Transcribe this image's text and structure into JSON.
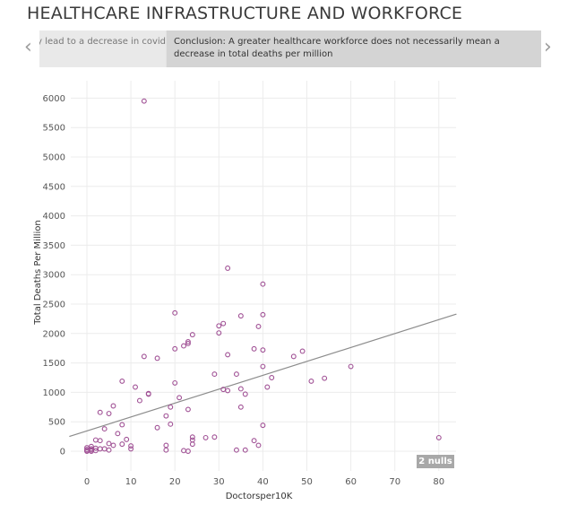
{
  "title": "HEALTHCARE INFRASTRUCTURE AND WORKFORCE",
  "story": {
    "prev_caption": "rily lead to a decrease in covid",
    "current_caption": "Conclusion: A greater healthcare workforce does not necessarily mean a decrease in total deaths per million",
    "prev_arrow": "‹",
    "next_arrow": "›"
  },
  "null_badge": "2 nulls",
  "colors": {
    "point": "#a05195",
    "trend": "#8c8c8c",
    "grid": "#ececec"
  },
  "chart_data": {
    "type": "scatter",
    "xlabel": "Doctorsper10K",
    "ylabel": "Total Deaths Per Million",
    "xlim": [
      -4,
      84
    ],
    "ylim": [
      -120,
      6150
    ],
    "xticks": [
      0,
      10,
      20,
      30,
      40,
      50,
      60,
      70,
      80
    ],
    "yticks": [
      0,
      500,
      1000,
      1500,
      2000,
      2500,
      3000,
      3500,
      4000,
      4500,
      5000,
      5500,
      6000
    ],
    "trend_line": {
      "x": [
        -4,
        84
      ],
      "y": [
        250,
        2330
      ]
    },
    "points": [
      [
        13,
        5950
      ],
      [
        32,
        3110
      ],
      [
        40,
        2840
      ],
      [
        20,
        2350
      ],
      [
        35,
        2300
      ],
      [
        40,
        2320
      ],
      [
        31,
        2170
      ],
      [
        30,
        2130
      ],
      [
        39,
        2120
      ],
      [
        30,
        2010
      ],
      [
        24,
        1980
      ],
      [
        23,
        1860
      ],
      [
        23,
        1830
      ],
      [
        22,
        1790
      ],
      [
        20,
        1740
      ],
      [
        38,
        1740
      ],
      [
        40,
        1720
      ],
      [
        49,
        1700
      ],
      [
        32,
        1640
      ],
      [
        13,
        1610
      ],
      [
        16,
        1580
      ],
      [
        47,
        1610
      ],
      [
        60,
        1440
      ],
      [
        40,
        1440
      ],
      [
        34,
        1310
      ],
      [
        29,
        1310
      ],
      [
        54,
        1240
      ],
      [
        42,
        1250
      ],
      [
        51,
        1190
      ],
      [
        8,
        1190
      ],
      [
        20,
        1160
      ],
      [
        11,
        1090
      ],
      [
        41,
        1090
      ],
      [
        35,
        1060
      ],
      [
        31,
        1050
      ],
      [
        32,
        1030
      ],
      [
        14,
        980
      ],
      [
        14,
        970
      ],
      [
        21,
        910
      ],
      [
        12,
        860
      ],
      [
        36,
        970
      ],
      [
        19,
        750
      ],
      [
        6,
        770
      ],
      [
        35,
        750
      ],
      [
        23,
        710
      ],
      [
        3,
        660
      ],
      [
        5,
        640
      ],
      [
        18,
        600
      ],
      [
        8,
        450
      ],
      [
        19,
        460
      ],
      [
        40,
        440
      ],
      [
        16,
        400
      ],
      [
        7,
        300
      ],
      [
        4,
        380
      ],
      [
        24,
        240
      ],
      [
        27,
        230
      ],
      [
        29,
        240
      ],
      [
        38,
        180
      ],
      [
        80,
        230
      ],
      [
        24,
        190
      ],
      [
        2,
        190
      ],
      [
        3,
        180
      ],
      [
        9,
        200
      ],
      [
        10,
        90
      ],
      [
        39,
        100
      ],
      [
        24,
        120
      ],
      [
        18,
        100
      ],
      [
        8,
        120
      ],
      [
        5,
        130
      ],
      [
        6,
        100
      ],
      [
        1,
        80
      ],
      [
        0,
        60
      ],
      [
        2,
        50
      ],
      [
        4,
        40
      ],
      [
        10,
        40
      ],
      [
        18,
        20
      ],
      [
        22,
        10
      ],
      [
        23,
        0
      ],
      [
        34,
        20
      ],
      [
        36,
        20
      ],
      [
        0,
        10
      ],
      [
        1,
        0
      ],
      [
        0,
        30
      ],
      [
        1,
        20
      ],
      [
        2,
        10
      ],
      [
        1,
        40
      ],
      [
        3,
        40
      ],
      [
        5,
        20
      ],
      [
        0,
        0
      ]
    ]
  }
}
